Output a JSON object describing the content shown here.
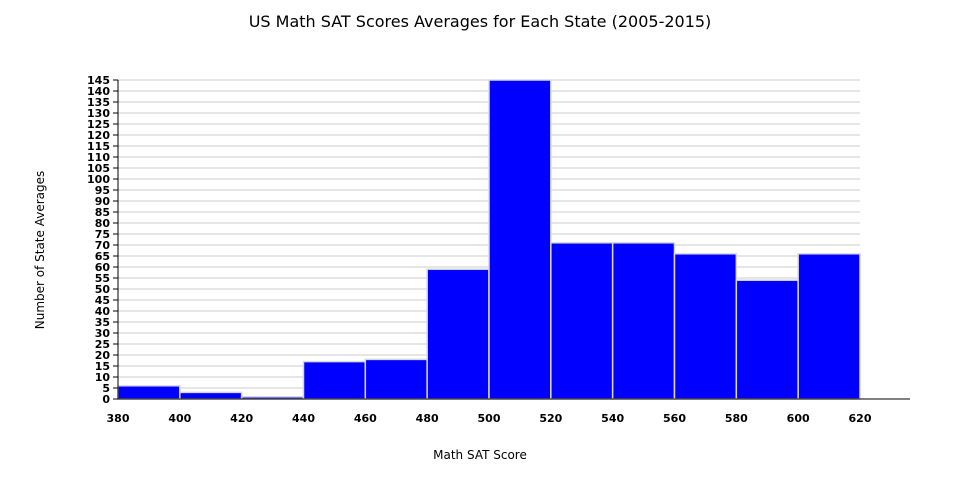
{
  "chart_data": {
    "type": "bar",
    "title": "US Math SAT Scores Averages for Each State (2005-2015)",
    "xlabel": "Math SAT Score",
    "ylabel": "Number of State Averages",
    "bin_edges": [
      380,
      400,
      420,
      440,
      460,
      480,
      500,
      520,
      540,
      560,
      580,
      600,
      620
    ],
    "x_ticks": [
      "380",
      "400",
      "420",
      "440",
      "460",
      "480",
      "500",
      "520",
      "540",
      "560",
      "580",
      "600",
      "620"
    ],
    "values": [
      6,
      3,
      1,
      17,
      18,
      59,
      145,
      71,
      71,
      66,
      54,
      66
    ],
    "ylim": [
      0,
      145
    ],
    "y_ticks": [
      "0",
      "5",
      "10",
      "15",
      "20",
      "25",
      "30",
      "35",
      "40",
      "45",
      "50",
      "55",
      "60",
      "65",
      "70",
      "75",
      "80",
      "85",
      "90",
      "95",
      "100",
      "105",
      "110",
      "115",
      "120",
      "125",
      "130",
      "135",
      "140",
      "145"
    ],
    "grid": true,
    "colors": {
      "bar": "#0000ff",
      "bar_stroke": "#d8d8d8",
      "grid": "#cccccc",
      "axis": "#000000"
    }
  }
}
